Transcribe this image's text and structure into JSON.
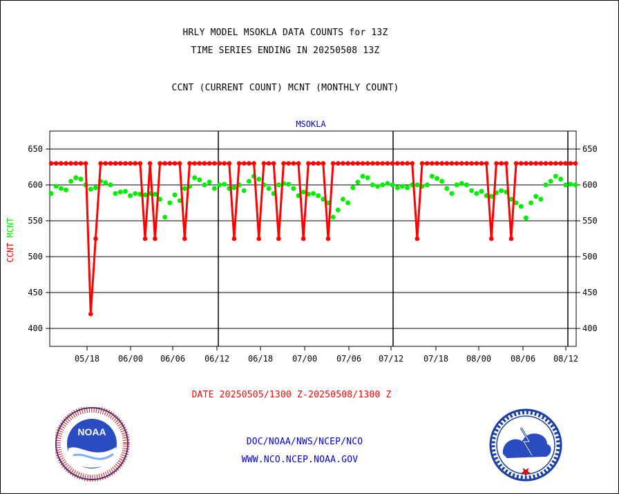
{
  "header": {
    "title_line1": "HRLY MODEL MSOKLA DATA COUNTS for 13Z",
    "title_line2": "TIME SERIES ENDING IN 20250508 13Z",
    "subtitle": "CCNT (CURRENT COUNT) MCNT (MONTHLY COUNT)"
  },
  "footer": {
    "date_range": "DATE 20250505/1300 Z-20250508/1300 Z",
    "org_path": "DOC/NOAA/NWS/NCEP/NCO",
    "website": "WWW.NCO.NCEP.NOAA.GOV"
  },
  "logos": {
    "noaa_text": "NOAA",
    "nws_text": "NATIONAL WEATHER SERVICE"
  },
  "colors": {
    "ccnt": "#ff0000",
    "mcnt": "#00ee00",
    "panel_title": "#0000cc",
    "footer_blue": "#0000cc"
  },
  "chart_data": {
    "type": "line",
    "title": "MSOKLA",
    "ylabel_left": "CCNT",
    "ylabel_right": "MCNT",
    "ylim": [
      375,
      675
    ],
    "yticks": [
      400,
      450,
      500,
      550,
      600,
      650
    ],
    "xticks": [
      "05/18",
      "06/00",
      "06/06",
      "06/12",
      "06/18",
      "07/00",
      "07/06",
      "07/12",
      "07/18",
      "08/00",
      "08/06",
      "08/12"
    ],
    "day_separators": [
      "06/12",
      "07/12",
      "08/12"
    ],
    "grid": true,
    "series": [
      {
        "name": "CCNT",
        "color": "#ff0000",
        "values": [
          630,
          630,
          630,
          630,
          630,
          630,
          630,
          630,
          420,
          525,
          630,
          630,
          630,
          630,
          630,
          630,
          630,
          630,
          630,
          525,
          630,
          525,
          630,
          630,
          630,
          630,
          630,
          525,
          630,
          630,
          630,
          630,
          630,
          630,
          630,
          630,
          630,
          525,
          630,
          630,
          630,
          630,
          525,
          630,
          630,
          630,
          525,
          630,
          630,
          630,
          630,
          525,
          630,
          630,
          630,
          630,
          525,
          630,
          630,
          630,
          630,
          630,
          630,
          630,
          630,
          630,
          630,
          630,
          630,
          630,
          630,
          630,
          630,
          630,
          525,
          630,
          630,
          630,
          630,
          630,
          630,
          630,
          630,
          630,
          630,
          630,
          630,
          630,
          630,
          525,
          630,
          630,
          630,
          525,
          630,
          630,
          630,
          630,
          630,
          630,
          630,
          630,
          630,
          630,
          630,
          630,
          630
        ]
      },
      {
        "name": "MCNT",
        "color": "#00ee00",
        "values": [
          588,
          598,
          595,
          593,
          605,
          610,
          608,
          600,
          594,
          596,
          605,
          603,
          600,
          588,
          590,
          591,
          585,
          588,
          587,
          586,
          588,
          587,
          580,
          555,
          575,
          586,
          578,
          595,
          598,
          610,
          607,
          600,
          604,
          595,
          600,
          601,
          595,
          596,
          600,
          592,
          605,
          612,
          608,
          600,
          595,
          588,
          600,
          602,
          601,
          595,
          585,
          590,
          587,
          588,
          585,
          580,
          575,
          555,
          565,
          580,
          575,
          596,
          604,
          612,
          610,
          600,
          598,
          600,
          602,
          600,
          596,
          598,
          596,
          600,
          600,
          598,
          600,
          612,
          609,
          605,
          595,
          588,
          600,
          602,
          600,
          592,
          588,
          591,
          585,
          584,
          589,
          592,
          590,
          580,
          575,
          570,
          554,
          575,
          584,
          580,
          600,
          605,
          612,
          608,
          600,
          601,
          600
        ]
      }
    ]
  }
}
